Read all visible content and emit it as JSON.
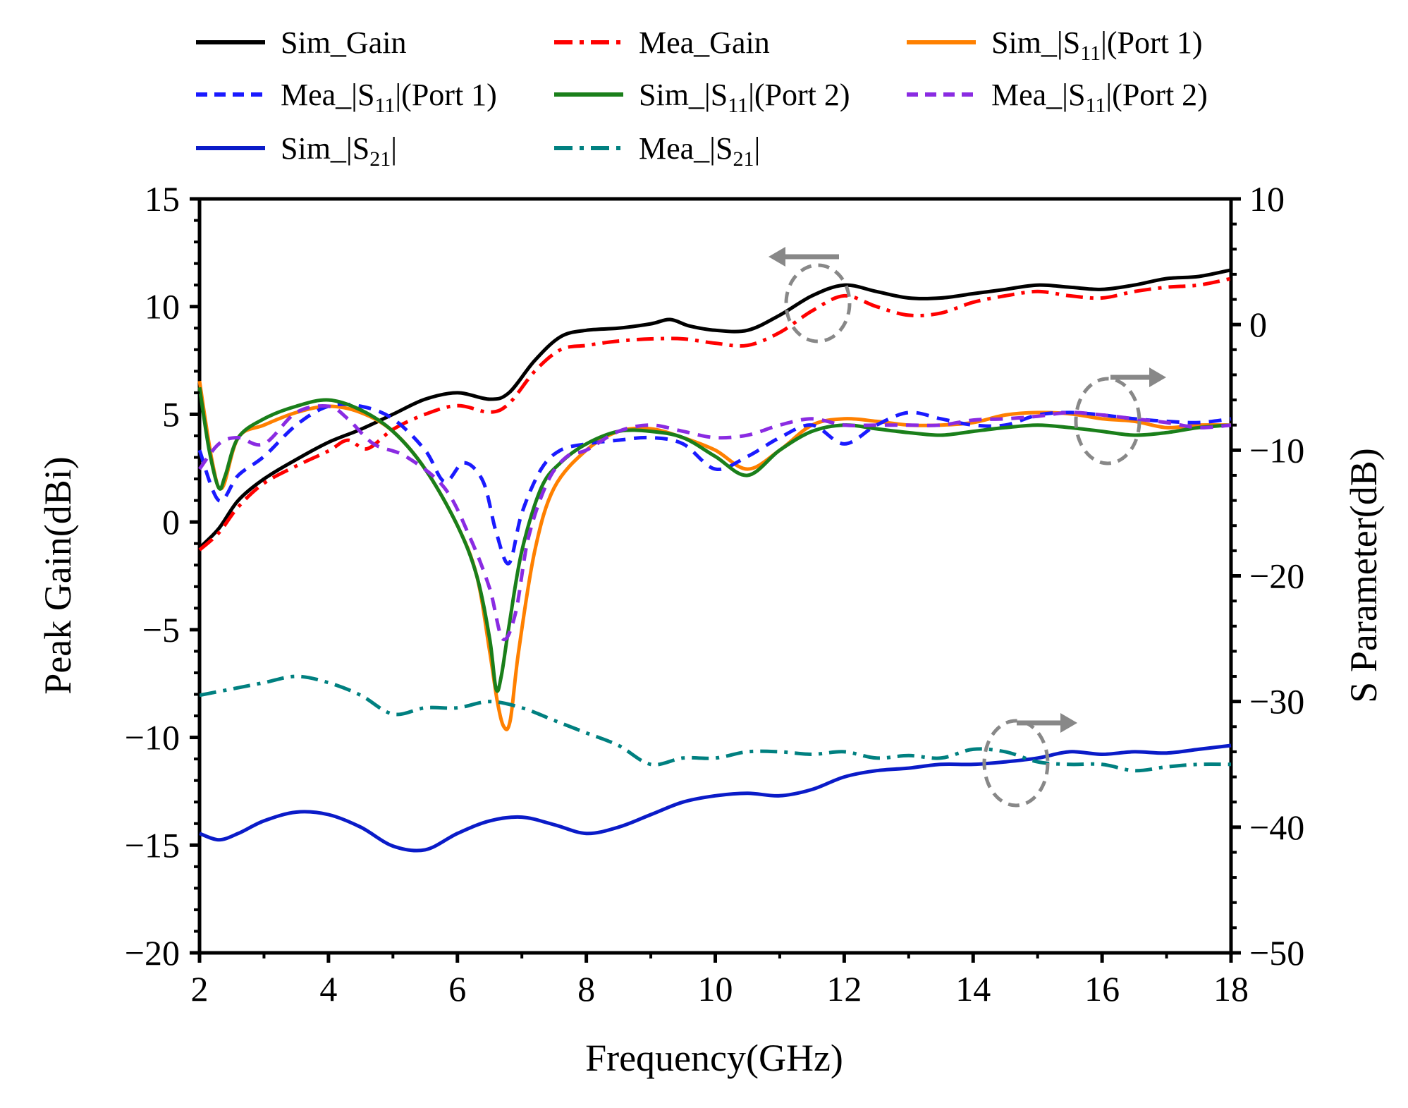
{
  "chart_data": {
    "type": "line",
    "title": "",
    "xlabel": "Frequency(GHz)",
    "ylabel_left": "Peak Gain(dBi)",
    "ylabel_right": "S Parameter(dB)",
    "xlim": [
      2,
      18
    ],
    "ylim_left": [
      -20,
      15
    ],
    "ylim_right": [
      -50,
      10
    ],
    "x_ticks": [
      "2",
      "4",
      "6",
      "8",
      "10",
      "12",
      "14",
      "16",
      "18"
    ],
    "y_left_ticks": [
      "−20",
      "−15",
      "−10",
      "−5",
      "0",
      "5",
      "10",
      "15"
    ],
    "y_right_ticks": [
      "−50",
      "−40",
      "−30",
      "−20",
      "−10",
      "0",
      "10"
    ],
    "grid": false,
    "legend_position": "top",
    "series": [
      {
        "name": "Sim_Gain",
        "label_main": "Sim_Gain",
        "label_sub": "",
        "label_tail": "",
        "axis": "left",
        "color": "#000000",
        "dash": "solid",
        "x": [
          2,
          2.3,
          2.6,
          3,
          3.5,
          4,
          4.5,
          5,
          5.5,
          6,
          6.5,
          6.8,
          7.2,
          7.6,
          8,
          8.5,
          9,
          9.3,
          9.6,
          10,
          10.5,
          11,
          11.5,
          12,
          12.5,
          13,
          13.5,
          14,
          14.5,
          15,
          15.5,
          16,
          16.5,
          17,
          17.5,
          18
        ],
        "y": [
          -1.2,
          -0.3,
          1.0,
          2.0,
          2.9,
          3.7,
          4.3,
          5.0,
          5.7,
          6.0,
          5.7,
          6.0,
          7.5,
          8.6,
          8.9,
          9.0,
          9.2,
          9.4,
          9.1,
          8.9,
          8.9,
          9.6,
          10.5,
          11.0,
          10.7,
          10.4,
          10.4,
          10.6,
          10.8,
          11.0,
          10.9,
          10.8,
          11.0,
          11.3,
          11.4,
          11.7
        ]
      },
      {
        "name": "Mea_Gain",
        "label_main": "Mea_Gain",
        "label_sub": "",
        "label_tail": "",
        "axis": "left",
        "color": "#ff0000",
        "dash": "dashdot",
        "x": [
          2,
          2.3,
          2.6,
          3,
          3.5,
          4,
          4.3,
          4.6,
          5,
          5.5,
          6,
          6.5,
          6.8,
          7.2,
          7.6,
          8,
          8.5,
          9,
          9.5,
          10,
          10.5,
          11,
          11.5,
          12,
          12.5,
          13,
          13.5,
          14,
          14.5,
          15,
          15.5,
          16,
          16.5,
          17,
          17.5,
          18
        ],
        "y": [
          -1.3,
          -0.5,
          0.7,
          1.8,
          2.6,
          3.3,
          3.8,
          3.4,
          4.3,
          5.0,
          5.4,
          5.1,
          5.5,
          7.0,
          8.0,
          8.2,
          8.4,
          8.5,
          8.5,
          8.3,
          8.2,
          8.8,
          9.8,
          10.5,
          10.0,
          9.6,
          9.7,
          10.2,
          10.5,
          10.7,
          10.5,
          10.4,
          10.7,
          10.9,
          11.0,
          11.3
        ]
      },
      {
        "name": "Sim_|S11|(Port 1)",
        "label_main": "Sim_|S",
        "label_sub": "11",
        "label_tail": "|(Port 1)",
        "axis": "right",
        "color": "#ff8000",
        "dash": "solid",
        "x": [
          2,
          2.2,
          2.35,
          2.6,
          3,
          3.5,
          4,
          4.5,
          5,
          5.5,
          6,
          6.3,
          6.5,
          6.62,
          6.72,
          6.82,
          6.95,
          7.2,
          7.5,
          8,
          8.5,
          9,
          9.5,
          10,
          10.5,
          11,
          11.5,
          12,
          12.5,
          13,
          13.5,
          14,
          14.5,
          15,
          15.5,
          16,
          16.5,
          17,
          17.5,
          18
        ],
        "y": [
          -4.5,
          -11.0,
          -13.0,
          -9.0,
          -8.0,
          -7.0,
          -6.5,
          -7.0,
          -8.5,
          -11.5,
          -16.0,
          -20.0,
          -26.0,
          -30.0,
          -32.0,
          -31.5,
          -26.0,
          -18.0,
          -13.0,
          -10.0,
          -8.5,
          -8.3,
          -9.0,
          -10.0,
          -11.5,
          -10.0,
          -8.0,
          -7.5,
          -7.7,
          -8.0,
          -8.0,
          -7.8,
          -7.2,
          -7.0,
          -7.1,
          -7.5,
          -7.7,
          -8.2,
          -8.0,
          -8.0
        ]
      },
      {
        "name": "Mea_|S11|(Port 1)",
        "label_main": "Mea_|S",
        "label_sub": "11",
        "label_tail": "|(Port 1)",
        "axis": "right",
        "color": "#1a1aff",
        "dash": "dashed",
        "x": [
          2,
          2.3,
          2.6,
          3,
          3.5,
          4,
          4.5,
          5,
          5.5,
          5.8,
          6.1,
          6.4,
          6.6,
          6.8,
          7.0,
          7.3,
          7.6,
          8,
          8.5,
          9,
          9.5,
          10,
          10.5,
          11,
          11.5,
          12,
          12.5,
          13,
          13.5,
          14,
          14.5,
          15,
          15.5,
          16,
          16.5,
          17,
          17.5,
          18
        ],
        "y": [
          -10.0,
          -14.0,
          -12.0,
          -10.5,
          -8.0,
          -6.5,
          -6.5,
          -7.5,
          -10.0,
          -12.5,
          -11.0,
          -12.5,
          -16.5,
          -19.0,
          -15.0,
          -11.5,
          -10.0,
          -9.5,
          -9.2,
          -9.0,
          -9.5,
          -11.5,
          -10.5,
          -9.0,
          -8.0,
          -9.5,
          -8.0,
          -7.0,
          -7.5,
          -8.0,
          -8.0,
          -7.2,
          -7.0,
          -7.2,
          -7.5,
          -7.7,
          -7.8,
          -7.5
        ]
      },
      {
        "name": "Sim_|S11|(Port 2)",
        "label_main": "Sim_|S",
        "label_sub": "11",
        "label_tail": "|(Port 2)",
        "axis": "right",
        "color": "#1a7f1a",
        "dash": "solid",
        "x": [
          2,
          2.15,
          2.3,
          2.4,
          2.6,
          3,
          3.5,
          4,
          4.5,
          5,
          5.5,
          6,
          6.3,
          6.5,
          6.6,
          6.68,
          6.8,
          7.0,
          7.3,
          7.6,
          8,
          8.5,
          9,
          9.5,
          10,
          10.5,
          11,
          11.5,
          12,
          12.5,
          13,
          13.5,
          14,
          14.5,
          15,
          15.5,
          16,
          16.5,
          17,
          17.5,
          18
        ],
        "y": [
          -5.0,
          -10.0,
          -13.0,
          -12.0,
          -9.0,
          -7.5,
          -6.5,
          -6.0,
          -6.8,
          -8.5,
          -11.5,
          -16.0,
          -20.0,
          -25.0,
          -29.0,
          -28.0,
          -24.0,
          -18.0,
          -13.0,
          -11.0,
          -9.5,
          -8.5,
          -8.5,
          -9.0,
          -10.5,
          -12.0,
          -10.0,
          -8.5,
          -8.0,
          -8.3,
          -8.6,
          -8.8,
          -8.5,
          -8.2,
          -8.0,
          -8.2,
          -8.5,
          -8.8,
          -8.6,
          -8.2,
          -8.0
        ]
      },
      {
        "name": "Mea_|S11|(Port 2)",
        "label_main": "Mea_|S",
        "label_sub": "11",
        "label_tail": "|(Port 2)",
        "axis": "right",
        "color": "#8a2be2",
        "dash": "dashed",
        "x": [
          2,
          2.3,
          2.6,
          3,
          3.5,
          4,
          4.3,
          4.7,
          5.2,
          5.8,
          6.2,
          6.5,
          6.7,
          6.9,
          7.1,
          7.4,
          7.7,
          8,
          8.5,
          9,
          9.5,
          10,
          10.5,
          11,
          11.5,
          12,
          12.5,
          13,
          13.5,
          14,
          14.5,
          15,
          15.5,
          16,
          16.5,
          17,
          17.5,
          18
        ],
        "y": [
          -11.5,
          -9.5,
          -9.0,
          -9.5,
          -7.0,
          -6.5,
          -7.5,
          -9.5,
          -10.5,
          -13.0,
          -17.0,
          -21.0,
          -25.0,
          -23.0,
          -17.0,
          -12.5,
          -10.5,
          -10.0,
          -8.5,
          -8.0,
          -8.5,
          -9.0,
          -8.8,
          -8.0,
          -7.5,
          -8.0,
          -8.0,
          -8.0,
          -8.0,
          -7.6,
          -7.5,
          -7.3,
          -7.0,
          -7.2,
          -7.5,
          -7.8,
          -8.2,
          -8.0
        ]
      },
      {
        "name": "Sim_|S21|",
        "label_main": "Sim_|S",
        "label_sub": "21",
        "label_tail": "|",
        "axis": "right",
        "color": "#0a1bc8",
        "dash": "solid",
        "x": [
          2,
          2.3,
          2.6,
          3,
          3.5,
          4,
          4.5,
          5,
          5.5,
          6,
          6.5,
          7,
          7.5,
          8,
          8.5,
          9,
          9.5,
          10,
          10.5,
          11,
          11.5,
          12,
          12.5,
          13,
          13.5,
          14,
          14.5,
          15,
          15.5,
          16,
          16.5,
          17,
          17.5,
          18
        ],
        "y": [
          -40.5,
          -41.0,
          -40.5,
          -39.5,
          -38.8,
          -39.0,
          -40.0,
          -41.5,
          -41.8,
          -40.5,
          -39.5,
          -39.2,
          -39.8,
          -40.5,
          -40.0,
          -39.0,
          -38.0,
          -37.5,
          -37.3,
          -37.5,
          -37.0,
          -36.0,
          -35.5,
          -35.3,
          -35.0,
          -35.0,
          -34.8,
          -34.5,
          -34.0,
          -34.2,
          -34.0,
          -34.1,
          -33.8,
          -33.5
        ]
      },
      {
        "name": "Mea_|S21|",
        "label_main": "Mea_|S",
        "label_sub": "21",
        "label_tail": "|",
        "axis": "right",
        "color": "#008080",
        "dash": "dashdot",
        "x": [
          2,
          2.5,
          3,
          3.5,
          4,
          4.5,
          5,
          5.5,
          6,
          6.5,
          7,
          7.5,
          8,
          8.5,
          9,
          9.5,
          10,
          10.5,
          11,
          11.5,
          12,
          12.5,
          13,
          13.5,
          14,
          14.5,
          15,
          15.5,
          16,
          16.5,
          17,
          17.5,
          18
        ],
        "y": [
          -29.5,
          -29.0,
          -28.5,
          -28.0,
          -28.5,
          -29.5,
          -31.0,
          -30.5,
          -30.5,
          -30.0,
          -30.5,
          -31.5,
          -32.5,
          -33.5,
          -35.0,
          -34.5,
          -34.5,
          -34.0,
          -34.0,
          -34.2,
          -34.0,
          -34.5,
          -34.3,
          -34.5,
          -33.8,
          -34.0,
          -34.8,
          -35.0,
          -35.0,
          -35.5,
          -35.2,
          -35.0,
          -35.0
        ]
      }
    ]
  }
}
